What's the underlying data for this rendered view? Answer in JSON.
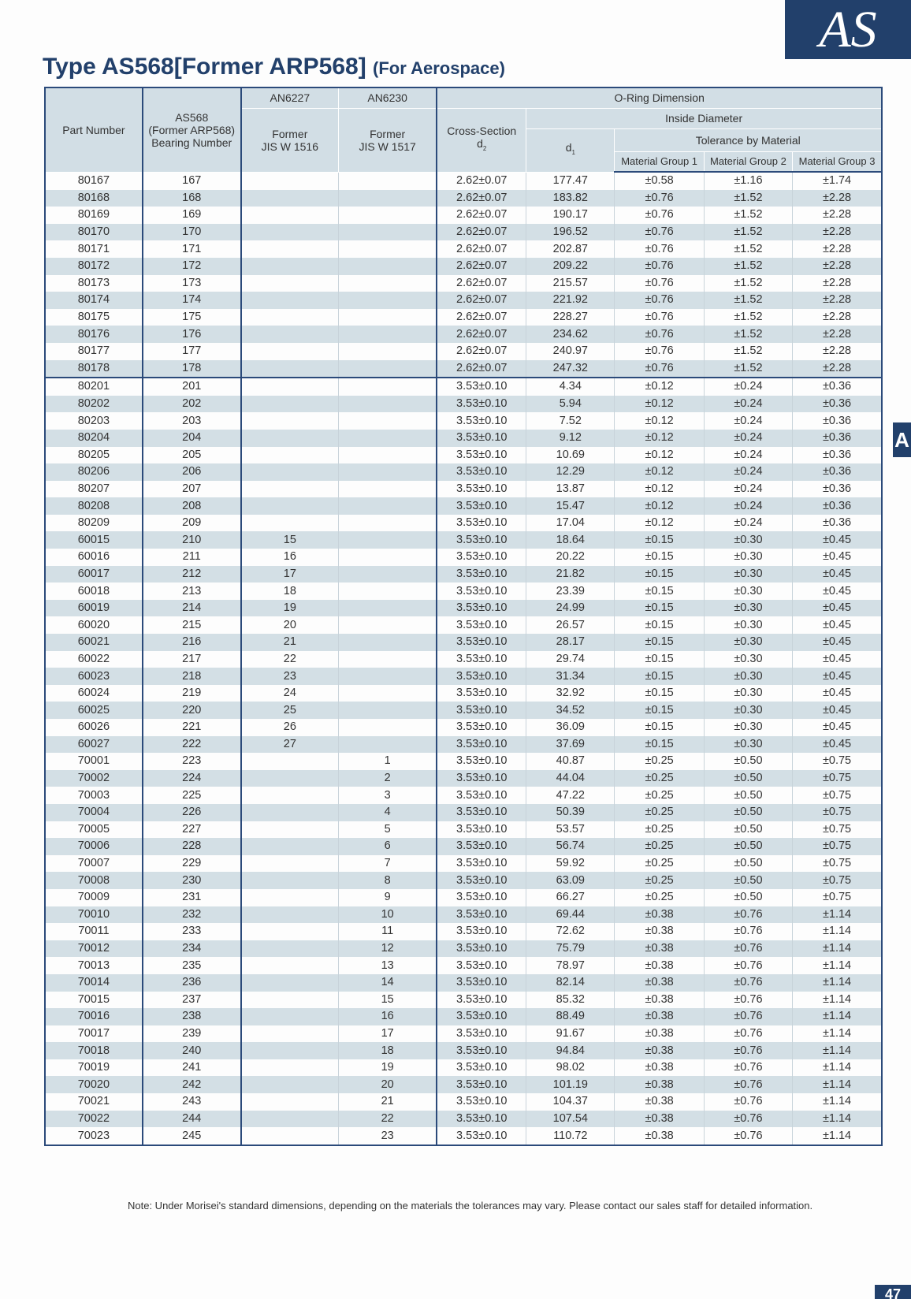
{
  "logo": "AS",
  "side_tab": "A",
  "title": {
    "main": "Type AS568[Former ARP568]",
    "sub": "(For Aerospace)"
  },
  "headers": {
    "part_number": "Part Number",
    "as568_line1": "AS568",
    "as568_line2": "(Former ARP568)",
    "as568_line3": "Bearing Number",
    "an6227": "AN6227",
    "an6227_former1": "Former",
    "an6227_former2": "JIS W 1516",
    "an6230": "AN6230",
    "an6230_former1": "Former",
    "an6230_former2": "JIS W 1517",
    "oring": "O-Ring Dimension",
    "cross_section": "Cross-Section",
    "d2": "d",
    "d2_sub": "2",
    "inside_diameter": "Inside Diameter",
    "d1": "d",
    "d1_sub": "1",
    "tolerance": "Tolerance by Material",
    "group1": "Material Group 1",
    "group2": "Material Group 2",
    "group3": "Material Group 3"
  },
  "rows": [
    [
      "80167",
      "167",
      "",
      "",
      "2.62±0.07",
      "177.47",
      "±0.58",
      "±1.16",
      "±1.74"
    ],
    [
      "80168",
      "168",
      "",
      "",
      "2.62±0.07",
      "183.82",
      "±0.76",
      "±1.52",
      "±2.28"
    ],
    [
      "80169",
      "169",
      "",
      "",
      "2.62±0.07",
      "190.17",
      "±0.76",
      "±1.52",
      "±2.28"
    ],
    [
      "80170",
      "170",
      "",
      "",
      "2.62±0.07",
      "196.52",
      "±0.76",
      "±1.52",
      "±2.28"
    ],
    [
      "80171",
      "171",
      "",
      "",
      "2.62±0.07",
      "202.87",
      "±0.76",
      "±1.52",
      "±2.28"
    ],
    [
      "80172",
      "172",
      "",
      "",
      "2.62±0.07",
      "209.22",
      "±0.76",
      "±1.52",
      "±2.28"
    ],
    [
      "80173",
      "173",
      "",
      "",
      "2.62±0.07",
      "215.57",
      "±0.76",
      "±1.52",
      "±2.28"
    ],
    [
      "80174",
      "174",
      "",
      "",
      "2.62±0.07",
      "221.92",
      "±0.76",
      "±1.52",
      "±2.28"
    ],
    [
      "80175",
      "175",
      "",
      "",
      "2.62±0.07",
      "228.27",
      "±0.76",
      "±1.52",
      "±2.28"
    ],
    [
      "80176",
      "176",
      "",
      "",
      "2.62±0.07",
      "234.62",
      "±0.76",
      "±1.52",
      "±2.28"
    ],
    [
      "80177",
      "177",
      "",
      "",
      "2.62±0.07",
      "240.97",
      "±0.76",
      "±1.52",
      "±2.28"
    ],
    [
      "80178",
      "178",
      "",
      "",
      "2.62±0.07",
      "247.32",
      "±0.76",
      "±1.52",
      "±2.28"
    ],
    [
      "80201",
      "201",
      "",
      "",
      "3.53±0.10",
      "4.34",
      "±0.12",
      "±0.24",
      "±0.36"
    ],
    [
      "80202",
      "202",
      "",
      "",
      "3.53±0.10",
      "5.94",
      "±0.12",
      "±0.24",
      "±0.36"
    ],
    [
      "80203",
      "203",
      "",
      "",
      "3.53±0.10",
      "7.52",
      "±0.12",
      "±0.24",
      "±0.36"
    ],
    [
      "80204",
      "204",
      "",
      "",
      "3.53±0.10",
      "9.12",
      "±0.12",
      "±0.24",
      "±0.36"
    ],
    [
      "80205",
      "205",
      "",
      "",
      "3.53±0.10",
      "10.69",
      "±0.12",
      "±0.24",
      "±0.36"
    ],
    [
      "80206",
      "206",
      "",
      "",
      "3.53±0.10",
      "12.29",
      "±0.12",
      "±0.24",
      "±0.36"
    ],
    [
      "80207",
      "207",
      "",
      "",
      "3.53±0.10",
      "13.87",
      "±0.12",
      "±0.24",
      "±0.36"
    ],
    [
      "80208",
      "208",
      "",
      "",
      "3.53±0.10",
      "15.47",
      "±0.12",
      "±0.24",
      "±0.36"
    ],
    [
      "80209",
      "209",
      "",
      "",
      "3.53±0.10",
      "17.04",
      "±0.12",
      "±0.24",
      "±0.36"
    ],
    [
      "60015",
      "210",
      "15",
      "",
      "3.53±0.10",
      "18.64",
      "±0.15",
      "±0.30",
      "±0.45"
    ],
    [
      "60016",
      "211",
      "16",
      "",
      "3.53±0.10",
      "20.22",
      "±0.15",
      "±0.30",
      "±0.45"
    ],
    [
      "60017",
      "212",
      "17",
      "",
      "3.53±0.10",
      "21.82",
      "±0.15",
      "±0.30",
      "±0.45"
    ],
    [
      "60018",
      "213",
      "18",
      "",
      "3.53±0.10",
      "23.39",
      "±0.15",
      "±0.30",
      "±0.45"
    ],
    [
      "60019",
      "214",
      "19",
      "",
      "3.53±0.10",
      "24.99",
      "±0.15",
      "±0.30",
      "±0.45"
    ],
    [
      "60020",
      "215",
      "20",
      "",
      "3.53±0.10",
      "26.57",
      "±0.15",
      "±0.30",
      "±0.45"
    ],
    [
      "60021",
      "216",
      "21",
      "",
      "3.53±0.10",
      "28.17",
      "±0.15",
      "±0.30",
      "±0.45"
    ],
    [
      "60022",
      "217",
      "22",
      "",
      "3.53±0.10",
      "29.74",
      "±0.15",
      "±0.30",
      "±0.45"
    ],
    [
      "60023",
      "218",
      "23",
      "",
      "3.53±0.10",
      "31.34",
      "±0.15",
      "±0.30",
      "±0.45"
    ],
    [
      "60024",
      "219",
      "24",
      "",
      "3.53±0.10",
      "32.92",
      "±0.15",
      "±0.30",
      "±0.45"
    ],
    [
      "60025",
      "220",
      "25",
      "",
      "3.53±0.10",
      "34.52",
      "±0.15",
      "±0.30",
      "±0.45"
    ],
    [
      "60026",
      "221",
      "26",
      "",
      "3.53±0.10",
      "36.09",
      "±0.15",
      "±0.30",
      "±0.45"
    ],
    [
      "60027",
      "222",
      "27",
      "",
      "3.53±0.10",
      "37.69",
      "±0.15",
      "±0.30",
      "±0.45"
    ],
    [
      "70001",
      "223",
      "",
      "1",
      "3.53±0.10",
      "40.87",
      "±0.25",
      "±0.50",
      "±0.75"
    ],
    [
      "70002",
      "224",
      "",
      "2",
      "3.53±0.10",
      "44.04",
      "±0.25",
      "±0.50",
      "±0.75"
    ],
    [
      "70003",
      "225",
      "",
      "3",
      "3.53±0.10",
      "47.22",
      "±0.25",
      "±0.50",
      "±0.75"
    ],
    [
      "70004",
      "226",
      "",
      "4",
      "3.53±0.10",
      "50.39",
      "±0.25",
      "±0.50",
      "±0.75"
    ],
    [
      "70005",
      "227",
      "",
      "5",
      "3.53±0.10",
      "53.57",
      "±0.25",
      "±0.50",
      "±0.75"
    ],
    [
      "70006",
      "228",
      "",
      "6",
      "3.53±0.10",
      "56.74",
      "±0.25",
      "±0.50",
      "±0.75"
    ],
    [
      "70007",
      "229",
      "",
      "7",
      "3.53±0.10",
      "59.92",
      "±0.25",
      "±0.50",
      "±0.75"
    ],
    [
      "70008",
      "230",
      "",
      "8",
      "3.53±0.10",
      "63.09",
      "±0.25",
      "±0.50",
      "±0.75"
    ],
    [
      "70009",
      "231",
      "",
      "9",
      "3.53±0.10",
      "66.27",
      "±0.25",
      "±0.50",
      "±0.75"
    ],
    [
      "70010",
      "232",
      "",
      "10",
      "3.53±0.10",
      "69.44",
      "±0.38",
      "±0.76",
      "±1.14"
    ],
    [
      "70011",
      "233",
      "",
      "11",
      "3.53±0.10",
      "72.62",
      "±0.38",
      "±0.76",
      "±1.14"
    ],
    [
      "70012",
      "234",
      "",
      "12",
      "3.53±0.10",
      "75.79",
      "±0.38",
      "±0.76",
      "±1.14"
    ],
    [
      "70013",
      "235",
      "",
      "13",
      "3.53±0.10",
      "78.97",
      "±0.38",
      "±0.76",
      "±1.14"
    ],
    [
      "70014",
      "236",
      "",
      "14",
      "3.53±0.10",
      "82.14",
      "±0.38",
      "±0.76",
      "±1.14"
    ],
    [
      "70015",
      "237",
      "",
      "15",
      "3.53±0.10",
      "85.32",
      "±0.38",
      "±0.76",
      "±1.14"
    ],
    [
      "70016",
      "238",
      "",
      "16",
      "3.53±0.10",
      "88.49",
      "±0.38",
      "±0.76",
      "±1.14"
    ],
    [
      "70017",
      "239",
      "",
      "17",
      "3.53±0.10",
      "91.67",
      "±0.38",
      "±0.76",
      "±1.14"
    ],
    [
      "70018",
      "240",
      "",
      "18",
      "3.53±0.10",
      "94.84",
      "±0.38",
      "±0.76",
      "±1.14"
    ],
    [
      "70019",
      "241",
      "",
      "19",
      "3.53±0.10",
      "98.02",
      "±0.38",
      "±0.76",
      "±1.14"
    ],
    [
      "70020",
      "242",
      "",
      "20",
      "3.53±0.10",
      "101.19",
      "±0.38",
      "±0.76",
      "±1.14"
    ],
    [
      "70021",
      "243",
      "",
      "21",
      "3.53±0.10",
      "104.37",
      "±0.38",
      "±0.76",
      "±1.14"
    ],
    [
      "70022",
      "244",
      "",
      "22",
      "3.53±0.10",
      "107.54",
      "±0.38",
      "±0.76",
      "±1.14"
    ],
    [
      "70023",
      "245",
      "",
      "23",
      "3.53±0.10",
      "110.72",
      "±0.38",
      "±0.76",
      "±1.14"
    ]
  ],
  "note": "Note: Under Morisei's standard dimensions, depending on the materials the tolerances may vary. Please contact our sales staff for detailed information.",
  "page_number": "47",
  "colors": {
    "brand_navy": "#22406b",
    "header_bg": "#d2dee5",
    "stripe": "#d3dfe5"
  }
}
